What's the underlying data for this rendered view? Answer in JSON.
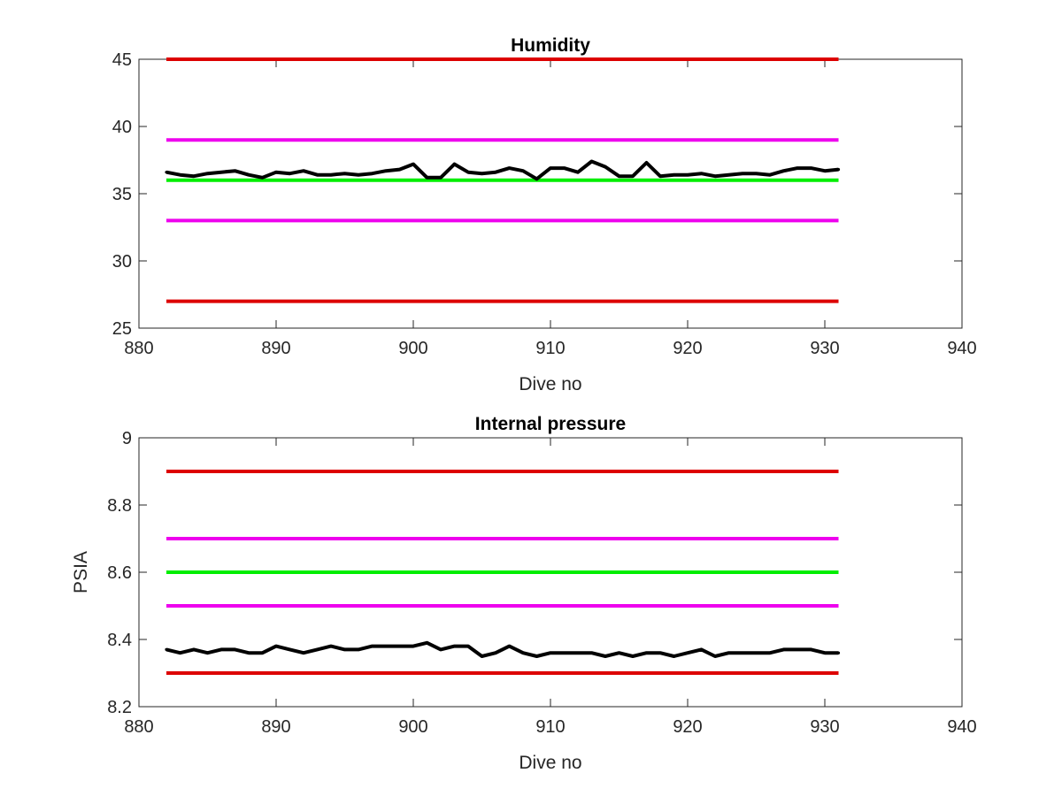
{
  "colors": {
    "red": "#dd0000",
    "magenta": "#ee00ee",
    "green": "#00ee00",
    "data": "#000000"
  },
  "chart_data": [
    {
      "type": "line",
      "title": "Humidity",
      "xlabel": "Dive no",
      "ylabel": "",
      "xlim": [
        880,
        940
      ],
      "ylim": [
        25,
        45
      ],
      "xticks": [
        "880",
        "890",
        "900",
        "910",
        "920",
        "930",
        "940"
      ],
      "yticks": [
        "25",
        "30",
        "35",
        "40",
        "45"
      ],
      "grid": false,
      "reference_lines": [
        {
          "value": 45,
          "color": "red",
          "x": [
            882,
            931
          ]
        },
        {
          "value": 39,
          "color": "magenta",
          "x": [
            882,
            931
          ]
        },
        {
          "value": 36,
          "color": "green",
          "x": [
            882,
            931
          ]
        },
        {
          "value": 33,
          "color": "magenta",
          "x": [
            882,
            931
          ]
        },
        {
          "value": 27,
          "color": "red",
          "x": [
            882,
            931
          ]
        }
      ],
      "series": [
        {
          "x": [
            882,
            883,
            884,
            885,
            886,
            887,
            888,
            889,
            890,
            891,
            892,
            893,
            894,
            895,
            896,
            897,
            898,
            899,
            900,
            901,
            902,
            903,
            904,
            905,
            906,
            907,
            908,
            909,
            910,
            911,
            912,
            913,
            914,
            915,
            916,
            917,
            918,
            919,
            920,
            921,
            922,
            923,
            924,
            925,
            926,
            927,
            928,
            929,
            930,
            931
          ],
          "values": [
            36.6,
            36.4,
            36.3,
            36.5,
            36.6,
            36.7,
            36.4,
            36.2,
            36.6,
            36.5,
            36.7,
            36.4,
            36.4,
            36.5,
            36.4,
            36.5,
            36.7,
            36.8,
            37.2,
            36.2,
            36.2,
            37.2,
            36.6,
            36.5,
            36.6,
            36.9,
            36.7,
            36.1,
            36.9,
            36.9,
            36.6,
            37.4,
            37.0,
            36.3,
            36.3,
            37.3,
            36.3,
            36.4,
            36.4,
            36.5,
            36.3,
            36.4,
            36.5,
            36.5,
            36.4,
            36.7,
            36.9,
            36.9,
            36.7,
            36.8
          ]
        }
      ]
    },
    {
      "type": "line",
      "title": "Internal pressure",
      "xlabel": "Dive no",
      "ylabel": "PSIA",
      "xlim": [
        880,
        940
      ],
      "ylim": [
        8.2,
        9
      ],
      "xticks": [
        "880",
        "890",
        "900",
        "910",
        "920",
        "930",
        "940"
      ],
      "yticks": [
        "8.2",
        "8.4",
        "8.6",
        "8.8",
        "9"
      ],
      "grid": false,
      "reference_lines": [
        {
          "value": 8.9,
          "color": "red",
          "x": [
            882,
            931
          ]
        },
        {
          "value": 8.7,
          "color": "magenta",
          "x": [
            882,
            931
          ]
        },
        {
          "value": 8.6,
          "color": "green",
          "x": [
            882,
            931
          ]
        },
        {
          "value": 8.5,
          "color": "magenta",
          "x": [
            882,
            931
          ]
        },
        {
          "value": 8.3,
          "color": "red",
          "x": [
            882,
            931
          ]
        }
      ],
      "series": [
        {
          "x": [
            882,
            883,
            884,
            885,
            886,
            887,
            888,
            889,
            890,
            891,
            892,
            893,
            894,
            895,
            896,
            897,
            898,
            899,
            900,
            901,
            902,
            903,
            904,
            905,
            906,
            907,
            908,
            909,
            910,
            911,
            912,
            913,
            914,
            915,
            916,
            917,
            918,
            919,
            920,
            921,
            922,
            923,
            924,
            925,
            926,
            927,
            928,
            929,
            930,
            931
          ],
          "values": [
            8.37,
            8.36,
            8.37,
            8.36,
            8.37,
            8.37,
            8.36,
            8.36,
            8.38,
            8.37,
            8.36,
            8.37,
            8.38,
            8.37,
            8.37,
            8.38,
            8.38,
            8.38,
            8.38,
            8.39,
            8.37,
            8.38,
            8.38,
            8.35,
            8.36,
            8.38,
            8.36,
            8.35,
            8.36,
            8.36,
            8.36,
            8.36,
            8.35,
            8.36,
            8.35,
            8.36,
            8.36,
            8.35,
            8.36,
            8.37,
            8.35,
            8.36,
            8.36,
            8.36,
            8.36,
            8.37,
            8.37,
            8.37,
            8.36,
            8.36
          ]
        }
      ]
    }
  ]
}
